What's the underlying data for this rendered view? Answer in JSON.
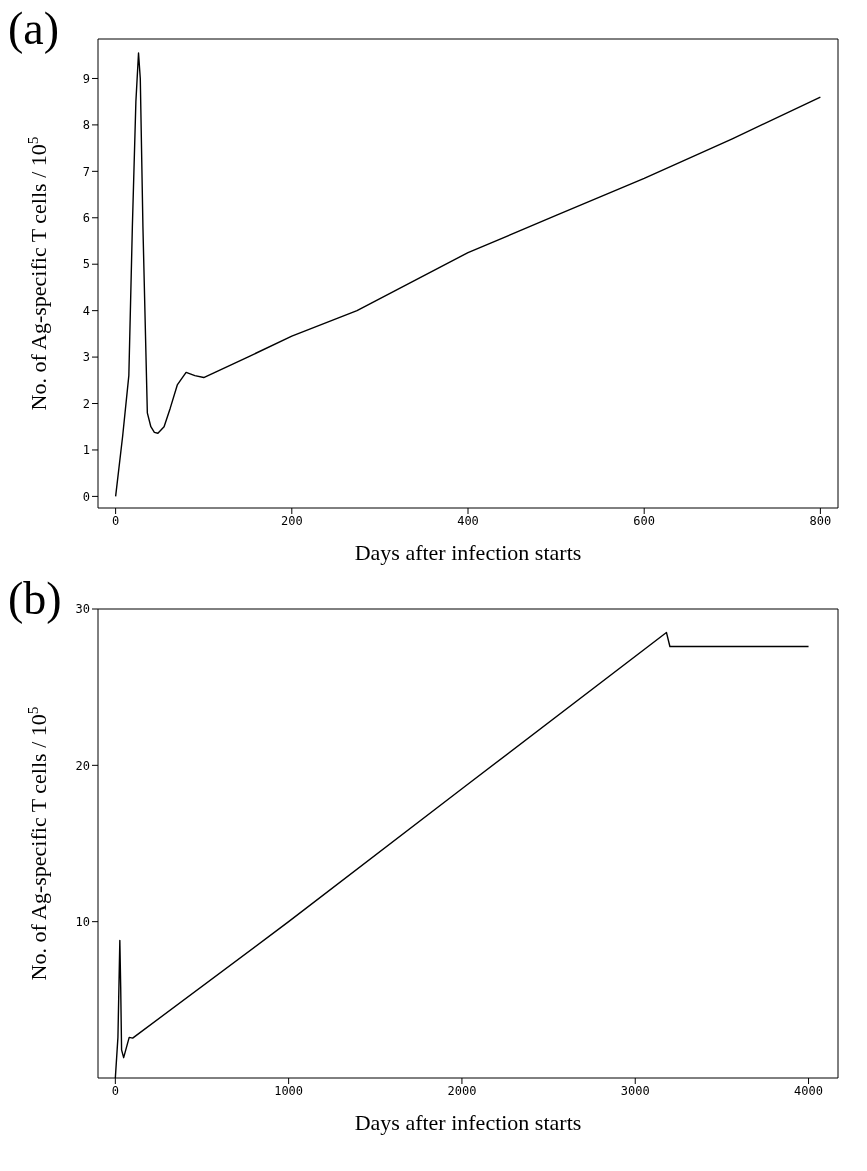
{
  "chart_data": [
    {
      "type": "line",
      "title": "(a)",
      "xlabel": "Days after infection starts",
      "ylabel": "No. of Ag-specific T cells / 10$^{5}$",
      "xlim": [
        -20,
        820
      ],
      "xticks": [
        0,
        200,
        400,
        600,
        800
      ],
      "ylim": [
        -0.25,
        9.85
      ],
      "yticks": [
        0,
        1,
        2,
        3,
        4,
        5,
        6,
        7,
        8,
        9
      ],
      "grid": false,
      "marker": "none",
      "line_style": "solid",
      "series": [
        {
          "color": "#000000",
          "x": [
            0,
            8,
            15,
            19,
            23,
            26,
            28,
            31,
            36,
            40,
            44,
            48,
            55,
            62,
            70,
            80,
            90,
            100,
            150,
            200,
            274,
            400,
            500,
            600,
            700,
            800
          ],
          "values": [
            0,
            1.3,
            2.6,
            5.8,
            8.5,
            9.55,
            9.0,
            5.8,
            1.8,
            1.5,
            1.38,
            1.36,
            1.5,
            1.9,
            2.4,
            2.67,
            2.6,
            2.56,
            3.0,
            3.45,
            4.0,
            5.25,
            6.05,
            6.85,
            7.7,
            8.6
          ]
        }
      ]
    },
    {
      "type": "line",
      "title": "(b)",
      "xlabel": "Days after infection starts",
      "ylabel": "No. of Ag-specific T cells / 10$^{5}$",
      "xlim": [
        -100,
        4170
      ],
      "xticks": [
        0,
        1000,
        2000,
        3000,
        4000
      ],
      "ylim": [
        0,
        30
      ],
      "yticks": [
        10,
        20,
        30
      ],
      "grid": false,
      "marker": "none",
      "line_style": "solid",
      "series": [
        {
          "color": "#000000",
          "x": [
            0,
            15,
            26,
            31,
            36,
            48,
            80,
            100,
            1000,
            2000,
            3180,
            3200,
            4000
          ],
          "values": [
            0,
            2.6,
            8.8,
            5.8,
            1.8,
            1.3,
            2.6,
            2.55,
            10.0,
            18.5,
            28.5,
            27.6,
            27.6
          ]
        }
      ]
    }
  ]
}
